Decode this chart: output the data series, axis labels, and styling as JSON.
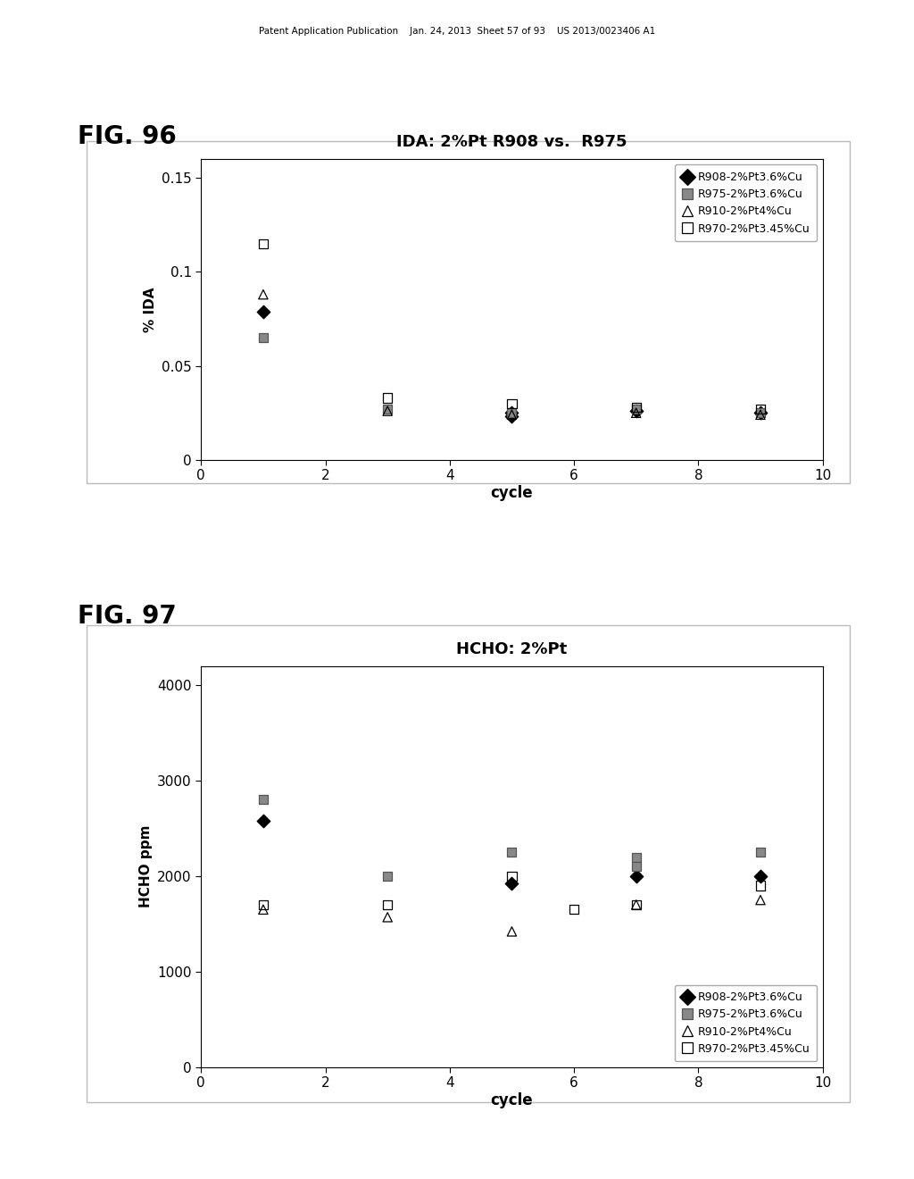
{
  "fig96": {
    "title": "IDA: 2%Pt R908 vs.  R975",
    "xlabel": "cycle",
    "ylabel": "% IDA",
    "xlim": [
      0,
      10
    ],
    "ylim": [
      0,
      0.16
    ],
    "yticks": [
      0,
      0.05,
      0.1,
      0.15
    ],
    "yticklabels": [
      "0",
      "0.05",
      "0.1",
      "0.15"
    ],
    "xticks": [
      0,
      2,
      4,
      6,
      8,
      10
    ],
    "xticklabels": [
      "0",
      "2",
      "4",
      "6",
      "8",
      "10"
    ],
    "series": [
      {
        "label": "R908-2%Pt3.6%Cu",
        "x": [
          1,
          5,
          5,
          7,
          9
        ],
        "y": [
          0.079,
          0.025,
          0.023,
          0.026,
          0.025
        ],
        "marker": "D",
        "mfc": "black",
        "mec": "black",
        "size": 55
      },
      {
        "label": "R975-2%Pt3.6%Cu",
        "x": [
          1,
          3,
          5,
          7,
          9
        ],
        "y": [
          0.065,
          0.027,
          0.025,
          0.027,
          0.025
        ],
        "marker": "s",
        "mfc": "#888888",
        "mec": "#555555",
        "size": 55
      },
      {
        "label": "R910-2%Pt4%Cu",
        "x": [
          1,
          3,
          5,
          7,
          9
        ],
        "y": [
          0.088,
          0.026,
          0.024,
          0.025,
          0.024
        ],
        "marker": "^",
        "mfc": "none",
        "mec": "black",
        "size": 55
      },
      {
        "label": "R970-2%Pt3.45%Cu",
        "x": [
          1,
          3,
          5,
          7,
          9
        ],
        "y": [
          0.115,
          0.033,
          0.03,
          0.028,
          0.027
        ],
        "marker": "s",
        "mfc": "none",
        "mec": "black",
        "size": 55
      }
    ],
    "legend_loc": "upper right"
  },
  "fig97": {
    "title": "HCHO: 2%Pt",
    "xlabel": "cycle",
    "ylabel": "HCHO ppm",
    "xlim": [
      0,
      10
    ],
    "ylim": [
      0,
      4200
    ],
    "yticks": [
      0,
      1000,
      2000,
      3000,
      4000
    ],
    "yticklabels": [
      "0",
      "1000",
      "2000",
      "3000",
      "4000"
    ],
    "xticks": [
      0,
      2,
      4,
      6,
      8,
      10
    ],
    "xticklabels": [
      "0",
      "2",
      "4",
      "6",
      "8",
      "10"
    ],
    "series": [
      {
        "label": "R908-2%Pt3.6%Cu",
        "x": [
          1,
          5,
          7,
          9
        ],
        "y": [
          2580,
          1920,
          2000,
          2000
        ],
        "marker": "D",
        "mfc": "black",
        "mec": "black",
        "size": 55
      },
      {
        "label": "R975-2%Pt3.6%Cu",
        "x": [
          1,
          3,
          5,
          7,
          7,
          9
        ],
        "y": [
          2800,
          2000,
          2250,
          2200,
          2100,
          2250
        ],
        "marker": "s",
        "mfc": "#888888",
        "mec": "#555555",
        "size": 55
      },
      {
        "label": "R910-2%Pt4%Cu",
        "x": [
          1,
          3,
          5,
          7,
          9
        ],
        "y": [
          1650,
          1570,
          1420,
          1700,
          1750
        ],
        "marker": "^",
        "mfc": "none",
        "mec": "black",
        "size": 55
      },
      {
        "label": "R970-2%Pt3.45%Cu",
        "x": [
          1,
          3,
          5,
          6,
          7,
          9
        ],
        "y": [
          1700,
          1700,
          2000,
          1650,
          1700,
          1900
        ],
        "marker": "s",
        "mfc": "none",
        "mec": "black",
        "size": 55
      }
    ],
    "legend_loc": "lower right"
  },
  "header_text": "Patent Application Publication    Jan. 24, 2013  Sheet 57 of 93    US 2013/0023406 A1",
  "fig96_label": "FIG. 96",
  "fig97_label": "FIG. 97",
  "bg_color": "#ffffff"
}
